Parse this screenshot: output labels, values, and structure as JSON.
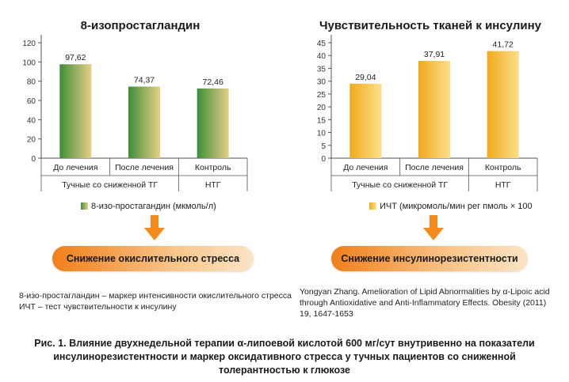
{
  "chart_data": [
    {
      "type": "bar",
      "title": "8-изопростагландин",
      "categories": [
        "До лечения",
        "После лечения",
        "Контроль"
      ],
      "values": [
        97.62,
        74.37,
        72.46
      ],
      "value_labels": [
        "97,62",
        "74,37",
        "72,46"
      ],
      "yticks": [
        "0",
        "20",
        "40",
        "60",
        "80",
        "100",
        "120"
      ],
      "ylim": [
        0,
        120
      ],
      "groups": [
        {
          "label": "Тучные со сниженной ТГ",
          "span": 2
        },
        {
          "label": "НТГ",
          "span": 1
        }
      ],
      "legend": "8-изо-простагандин (мкмоль/л)",
      "color_start": "#3e8e3a",
      "color_end": "#e6cf86"
    },
    {
      "type": "bar",
      "title": "Чувствительность тканей к инсулину",
      "categories": [
        "До лечения",
        "После лечения",
        "Контроль"
      ],
      "values": [
        29.04,
        37.91,
        41.72
      ],
      "value_labels": [
        "29,04",
        "37,91",
        "41,72"
      ],
      "yticks": [
        "0",
        "5",
        "10",
        "15",
        "20",
        "25",
        "30",
        "35",
        "40",
        "45"
      ],
      "ylim": [
        0,
        45
      ],
      "groups": [
        {
          "label": "Тучные со сниженной ТГ",
          "span": 2
        },
        {
          "label": "НТГ",
          "span": 1
        }
      ],
      "legend": "ИЧТ (микромоль/мин рег пмоль × 100",
      "color_start": "#f2a91a",
      "color_end": "#fbe08a"
    }
  ],
  "outcomes": {
    "left": "Снижение окислительного стресса",
    "right": "Снижение инсулинорезистентности"
  },
  "notes": {
    "line1": "8-изо-простагландин – маркер  интенсивности окислительного стресса",
    "line2": "ИЧТ – тест чувствительности к инсулину"
  },
  "reference": {
    "line1": "Yongyan  Zhang. Amelioration of Lipid Abnormalities by α-Lipoic acid",
    "line2": "through Antioxidative and Anti-Inflammatory Effects. Obesity (2011)",
    "line3": "19, 1647-1653"
  },
  "caption": {
    "line1": "Рис. 1. Влияние двухнедельной терапии α-липоевой кислотой 600 мг/сут внутривенно на показатели",
    "line2": "инсулинорезистентности и маркер оксидативного стресса у тучных пациентов со сниженной",
    "line3": "толерантностью к глюкозе"
  },
  "colors": {
    "arrow": "#f28a1e",
    "axis": "#555555"
  }
}
